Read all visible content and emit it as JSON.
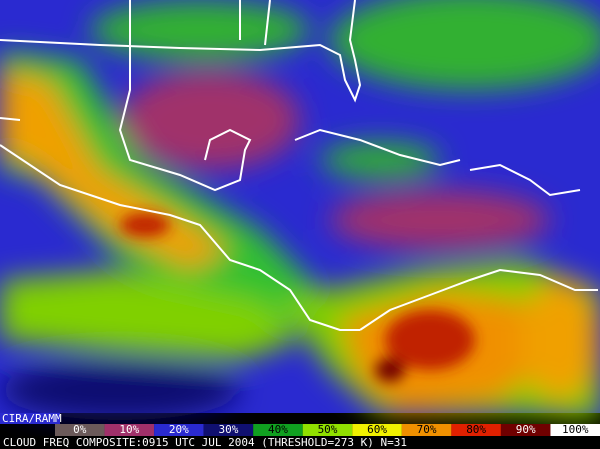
{
  "logo": "CIRA/RAMM",
  "legend": {
    "items": [
      {
        "label": "0%",
        "color": "#6b5a5a"
      },
      {
        "label": "10%",
        "color": "#a0306a"
      },
      {
        "label": "20%",
        "color": "#2a2ad0"
      },
      {
        "label": "30%",
        "color": "#101070"
      },
      {
        "label": "40%",
        "color": "#10a020"
      },
      {
        "label": "50%",
        "color": "#90e000"
      },
      {
        "label": "60%",
        "color": "#f0f000"
      },
      {
        "label": "70%",
        "color": "#f09000"
      },
      {
        "label": "80%",
        "color": "#e02000"
      },
      {
        "label": "90%",
        "color": "#700000"
      },
      {
        "label": "100%",
        "color": "#ffffff"
      }
    ]
  },
  "caption": "CLOUD FREQ COMPOSITE:0915 UTC JUL 2004 (THRESHOLD=273 K) N=31"
}
